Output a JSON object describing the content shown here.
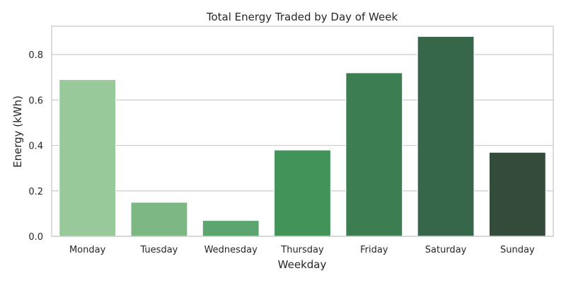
{
  "chart_data": {
    "type": "bar",
    "title": "Total Energy Traded by Day of Week",
    "xlabel": "Weekday",
    "ylabel": "Energy (kWh)",
    "categories": [
      "Monday",
      "Tuesday",
      "Wednesday",
      "Thursday",
      "Friday",
      "Saturday",
      "Sunday"
    ],
    "values": [
      0.69,
      0.15,
      0.07,
      0.38,
      0.72,
      0.88,
      0.37
    ],
    "colors": [
      "#98c99b",
      "#7cb784",
      "#5da56f",
      "#41935a",
      "#3c7d51",
      "#37674a",
      "#344b3b"
    ],
    "ylim": [
      0,
      0.925
    ],
    "yticks": [
      0.0,
      0.2,
      0.4,
      0.6,
      0.8
    ],
    "ytick_labels": [
      "0.0",
      "0.2",
      "0.4",
      "0.6",
      "0.8"
    ],
    "grid": "horizontal",
    "legend": "none"
  }
}
